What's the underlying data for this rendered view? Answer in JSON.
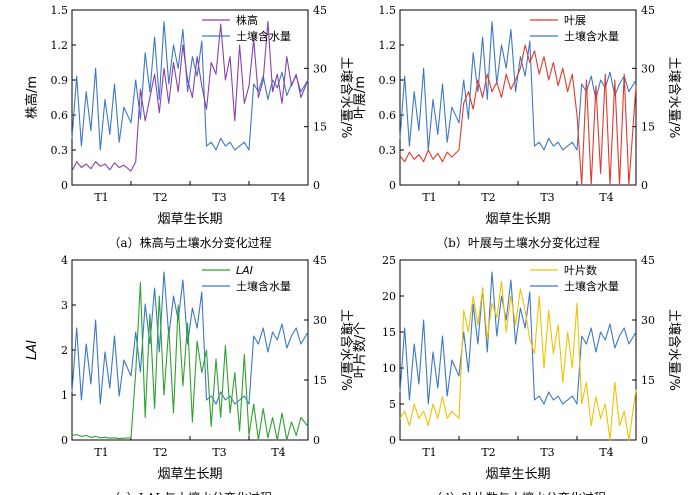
{
  "colors": {
    "soil": "#3c78c8",
    "plant_height": "#8a3fb0",
    "leaf_spread": "#e03a2c",
    "lai": "#2ea12e",
    "leaf_count": "#f2c200"
  },
  "chart_data": [
    {
      "type": "line",
      "caption": "（a）株高与土壤水分变化过程",
      "xlabel": "烟草生长期",
      "ylabel": "株高/m",
      "y2label": "土壤含水量/%",
      "categories": [
        "T1",
        "T2",
        "T3",
        "T4"
      ],
      "ylim": [
        0,
        1.5
      ],
      "yticks": [
        "0",
        "0.3",
        "0.6",
        "0.9",
        "1.2",
        "1.5"
      ],
      "y2lim": [
        0,
        45
      ],
      "y2ticks": [
        "0",
        "15",
        "30",
        "45"
      ],
      "legend": [
        "株高",
        "土壤含水量"
      ],
      "series": [
        {
          "name": "株高",
          "axis": "left",
          "color_key": "plant_height",
          "x": [
            0.0,
            0.02,
            0.04,
            0.06,
            0.08,
            0.1,
            0.12,
            0.14,
            0.16,
            0.18,
            0.2,
            0.22,
            0.25,
            0.27,
            0.29,
            0.31,
            0.33,
            0.35,
            0.37,
            0.39,
            0.41,
            0.43,
            0.45,
            0.47,
            0.49,
            0.51,
            0.53,
            0.55,
            0.57,
            0.59,
            0.61,
            0.63,
            0.65,
            0.67,
            0.69,
            0.71,
            0.73,
            0.75,
            0.77,
            0.79,
            0.81,
            0.83,
            0.85,
            0.87,
            0.89,
            0.91,
            0.93,
            0.95,
            0.97,
            1.0
          ],
          "values": [
            0.12,
            0.2,
            0.15,
            0.18,
            0.14,
            0.2,
            0.16,
            0.18,
            0.13,
            0.19,
            0.15,
            0.17,
            0.12,
            0.2,
            0.82,
            0.55,
            0.75,
            0.95,
            0.62,
            1.0,
            0.7,
            1.05,
            0.8,
            1.2,
            0.9,
            0.75,
            1.1,
            0.85,
            0.65,
            1.05,
            0.95,
            1.38,
            0.9,
            1.1,
            0.55,
            1.2,
            0.7,
            0.85,
            1.25,
            0.75,
            0.9,
            1.4,
            0.8,
            0.95,
            0.7,
            1.1,
            0.85,
            0.95,
            0.75,
            0.9
          ]
        },
        {
          "name": "土壤含水量",
          "axis": "right",
          "color_key": "soil",
          "x": [
            0.0,
            0.02,
            0.04,
            0.06,
            0.08,
            0.1,
            0.12,
            0.14,
            0.16,
            0.18,
            0.2,
            0.22,
            0.25,
            0.27,
            0.29,
            0.31,
            0.33,
            0.35,
            0.37,
            0.39,
            0.41,
            0.43,
            0.45,
            0.47,
            0.49,
            0.51,
            0.53,
            0.55,
            0.57,
            0.59,
            0.61,
            0.63,
            0.65,
            0.67,
            0.69,
            0.71,
            0.73,
            0.75,
            0.77,
            0.79,
            0.81,
            0.83,
            0.85,
            0.87,
            0.89,
            0.91,
            0.93,
            0.95,
            0.97,
            1.0
          ],
          "values": [
            12,
            28,
            10,
            24,
            14,
            30,
            9,
            22,
            13,
            26,
            11,
            20,
            16,
            27,
            17,
            34,
            24,
            38,
            22,
            42,
            26,
            36,
            30,
            40,
            24,
            33,
            28,
            37,
            10,
            11,
            9,
            12,
            10,
            11,
            9,
            10,
            11,
            9,
            26,
            24,
            28,
            22,
            27,
            25,
            29,
            23,
            26,
            28,
            24,
            27
          ]
        }
      ]
    },
    {
      "type": "line",
      "caption": "（b）叶展与土壤水分变化过程",
      "xlabel": "烟草生长期",
      "ylabel": "叶展/m",
      "y2label": "土壤含水量/%",
      "categories": [
        "T1",
        "T2",
        "T3",
        "T4"
      ],
      "ylim": [
        0,
        1.5
      ],
      "yticks": [
        "0",
        "0.3",
        "0.6",
        "0.9",
        "1.2",
        "1.5"
      ],
      "y2lim": [
        0,
        45
      ],
      "y2ticks": [
        "0",
        "15",
        "30",
        "45"
      ],
      "legend": [
        "叶展",
        "土壤含水量"
      ],
      "series": [
        {
          "name": "叶展",
          "axis": "left",
          "color_key": "leaf_spread",
          "x": [
            0.0,
            0.02,
            0.04,
            0.06,
            0.08,
            0.1,
            0.12,
            0.14,
            0.16,
            0.18,
            0.2,
            0.22,
            0.25,
            0.27,
            0.29,
            0.31,
            0.33,
            0.35,
            0.37,
            0.39,
            0.41,
            0.43,
            0.45,
            0.47,
            0.49,
            0.51,
            0.53,
            0.55,
            0.57,
            0.59,
            0.61,
            0.63,
            0.65,
            0.67,
            0.69,
            0.71,
            0.73,
            0.75,
            0.77,
            0.79,
            0.81,
            0.83,
            0.85,
            0.87,
            0.89,
            0.91,
            0.93,
            0.95,
            0.97,
            1.0
          ],
          "values": [
            0.25,
            0.2,
            0.28,
            0.22,
            0.26,
            0.2,
            0.3,
            0.22,
            0.27,
            0.2,
            0.28,
            0.24,
            0.3,
            0.7,
            0.8,
            0.65,
            0.9,
            0.75,
            0.95,
            0.8,
            0.88,
            0.75,
            0.95,
            0.82,
            0.9,
            1.0,
            1.2,
            1.05,
            1.15,
            0.95,
            1.1,
            0.9,
            1.05,
            0.85,
            1.0,
            0.8,
            0.95,
            0.6,
            0.0,
            0.9,
            0.0,
            0.85,
            0.1,
            0.95,
            0.0,
            0.9,
            0.0,
            0.95,
            0.0,
            0.85
          ]
        },
        {
          "name": "土壤含水量",
          "axis": "right",
          "color_key": "soil",
          "x": [
            0.0,
            0.02,
            0.04,
            0.06,
            0.08,
            0.1,
            0.12,
            0.14,
            0.16,
            0.18,
            0.2,
            0.22,
            0.25,
            0.27,
            0.29,
            0.31,
            0.33,
            0.35,
            0.37,
            0.39,
            0.41,
            0.43,
            0.45,
            0.47,
            0.49,
            0.51,
            0.53,
            0.55,
            0.57,
            0.59,
            0.61,
            0.63,
            0.65,
            0.67,
            0.69,
            0.71,
            0.73,
            0.75,
            0.77,
            0.79,
            0.81,
            0.83,
            0.85,
            0.87,
            0.89,
            0.91,
            0.93,
            0.95,
            0.97,
            1.0
          ],
          "values": [
            12,
            28,
            10,
            24,
            14,
            30,
            9,
            22,
            13,
            26,
            11,
            20,
            16,
            27,
            17,
            34,
            24,
            38,
            22,
            42,
            26,
            36,
            30,
            40,
            24,
            33,
            28,
            37,
            10,
            11,
            9,
            12,
            10,
            11,
            9,
            10,
            11,
            9,
            26,
            24,
            28,
            22,
            27,
            25,
            29,
            23,
            26,
            28,
            24,
            27
          ]
        }
      ]
    },
    {
      "type": "line",
      "caption": "（c）LAI 与土壤水分变化过程",
      "xlabel": "烟草生长期",
      "ylabel": "LAI",
      "y2label": "土壤含水量/%",
      "categories": [
        "T1",
        "T2",
        "T3",
        "T4"
      ],
      "ylim": [
        0,
        4
      ],
      "yticks": [
        "0",
        "1",
        "2",
        "3",
        "4"
      ],
      "y2lim": [
        0,
        45
      ],
      "y2ticks": [
        "0",
        "15",
        "30",
        "45"
      ],
      "legend": [
        "LAI",
        "土壤含水量"
      ],
      "series": [
        {
          "name": "LAI",
          "axis": "left",
          "color_key": "lai",
          "x": [
            0.0,
            0.02,
            0.04,
            0.06,
            0.08,
            0.1,
            0.12,
            0.14,
            0.16,
            0.18,
            0.2,
            0.22,
            0.25,
            0.27,
            0.29,
            0.31,
            0.33,
            0.35,
            0.37,
            0.39,
            0.41,
            0.43,
            0.45,
            0.47,
            0.49,
            0.51,
            0.53,
            0.55,
            0.57,
            0.59,
            0.61,
            0.63,
            0.65,
            0.67,
            0.69,
            0.71,
            0.73,
            0.75,
            0.77,
            0.79,
            0.81,
            0.83,
            0.85,
            0.87,
            0.89,
            0.91,
            0.93,
            0.95,
            0.97,
            1.0
          ],
          "values": [
            0.1,
            0.12,
            0.08,
            0.1,
            0.06,
            0.08,
            0.05,
            0.06,
            0.04,
            0.05,
            0.03,
            0.04,
            0.05,
            1.5,
            3.5,
            0.5,
            2.8,
            0.7,
            3.2,
            1.0,
            2.5,
            0.6,
            3.0,
            1.2,
            2.6,
            0.4,
            2.2,
            1.5,
            2.0,
            0.3,
            1.8,
            0.5,
            2.1,
            0.6,
            1.5,
            0.2,
            1.9,
            0.1,
            0.8,
            0.0,
            0.7,
            0.05,
            0.5,
            0.0,
            0.6,
            0.0,
            0.4,
            0.1,
            0.5,
            0.3
          ]
        },
        {
          "name": "土壤含水量",
          "axis": "right",
          "color_key": "soil",
          "x": [
            0.0,
            0.02,
            0.04,
            0.06,
            0.08,
            0.1,
            0.12,
            0.14,
            0.16,
            0.18,
            0.2,
            0.22,
            0.25,
            0.27,
            0.29,
            0.31,
            0.33,
            0.35,
            0.37,
            0.39,
            0.41,
            0.43,
            0.45,
            0.47,
            0.49,
            0.51,
            0.53,
            0.55,
            0.57,
            0.59,
            0.61,
            0.63,
            0.65,
            0.67,
            0.69,
            0.71,
            0.73,
            0.75,
            0.77,
            0.79,
            0.81,
            0.83,
            0.85,
            0.87,
            0.89,
            0.91,
            0.93,
            0.95,
            0.97,
            1.0
          ],
          "values": [
            12,
            28,
            10,
            24,
            14,
            30,
            9,
            22,
            13,
            26,
            11,
            20,
            16,
            27,
            17,
            34,
            24,
            38,
            22,
            42,
            26,
            36,
            30,
            40,
            24,
            33,
            28,
            37,
            10,
            11,
            9,
            12,
            10,
            11,
            9,
            10,
            11,
            9,
            26,
            24,
            28,
            22,
            27,
            25,
            29,
            23,
            26,
            28,
            24,
            27
          ]
        }
      ]
    },
    {
      "type": "line",
      "caption": "（d）叶片数与土壤水分变化过程",
      "xlabel": "烟草生长期",
      "ylabel": "叶片数/个",
      "y2label": "土壤含水量/%",
      "categories": [
        "T1",
        "T2",
        "T3",
        "T4"
      ],
      "ylim": [
        0,
        25
      ],
      "yticks": [
        "0",
        "5",
        "10",
        "15",
        "20",
        "25"
      ],
      "y2lim": [
        0,
        45
      ],
      "y2ticks": [
        "0",
        "15",
        "30",
        "45"
      ],
      "legend": [
        "叶片数",
        "土壤含水量"
      ],
      "series": [
        {
          "name": "叶片数",
          "axis": "left",
          "color_key": "leaf_count",
          "x": [
            0.0,
            0.02,
            0.04,
            0.06,
            0.08,
            0.1,
            0.12,
            0.14,
            0.16,
            0.18,
            0.2,
            0.22,
            0.25,
            0.27,
            0.29,
            0.31,
            0.33,
            0.35,
            0.37,
            0.39,
            0.41,
            0.43,
            0.45,
            0.47,
            0.49,
            0.51,
            0.53,
            0.55,
            0.57,
            0.59,
            0.61,
            0.63,
            0.65,
            0.67,
            0.69,
            0.71,
            0.73,
            0.75,
            0.77,
            0.79,
            0.81,
            0.83,
            0.85,
            0.87,
            0.89,
            0.91,
            0.93,
            0.95,
            0.97,
            1.0
          ],
          "values": [
            3,
            4,
            2,
            5,
            3,
            4,
            2,
            5,
            3,
            6,
            3,
            4,
            3,
            18,
            15,
            20,
            16,
            21,
            14,
            19,
            17,
            22,
            15,
            20,
            16,
            21,
            18,
            14,
            12,
            20,
            10,
            18,
            12,
            16,
            8,
            15,
            10,
            19,
            5,
            8,
            2,
            6,
            3,
            5,
            0,
            8,
            2,
            4,
            0,
            7
          ]
        },
        {
          "name": "土壤含水量",
          "axis": "right",
          "color_key": "soil",
          "x": [
            0.0,
            0.02,
            0.04,
            0.06,
            0.08,
            0.1,
            0.12,
            0.14,
            0.16,
            0.18,
            0.2,
            0.22,
            0.25,
            0.27,
            0.29,
            0.31,
            0.33,
            0.35,
            0.37,
            0.39,
            0.41,
            0.43,
            0.45,
            0.47,
            0.49,
            0.51,
            0.53,
            0.55,
            0.57,
            0.59,
            0.61,
            0.63,
            0.65,
            0.67,
            0.69,
            0.71,
            0.73,
            0.75,
            0.77,
            0.79,
            0.81,
            0.83,
            0.85,
            0.87,
            0.89,
            0.91,
            0.93,
            0.95,
            0.97,
            1.0
          ],
          "values": [
            12,
            28,
            10,
            24,
            14,
            30,
            9,
            22,
            13,
            26,
            11,
            20,
            16,
            27,
            17,
            34,
            24,
            38,
            22,
            42,
            26,
            36,
            30,
            40,
            24,
            33,
            28,
            37,
            10,
            11,
            9,
            12,
            10,
            11,
            9,
            10,
            11,
            9,
            26,
            24,
            28,
            22,
            27,
            25,
            29,
            23,
            26,
            28,
            24,
            27
          ]
        }
      ]
    }
  ]
}
